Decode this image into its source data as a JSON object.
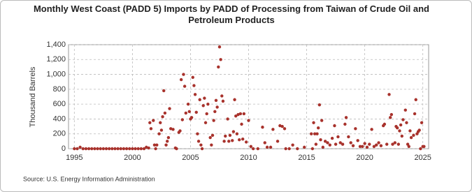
{
  "chart_data": {
    "type": "scatter",
    "title": "Monthly West Coast (PADD 5) Imports by PADD of Processing from Taiwan of Crude Oil and Petroleum Products",
    "y_label": "Thousand Barrels",
    "source": "Source: U.S. Energy Information Administration",
    "color": "#a8322c",
    "grid": true,
    "xlim": [
      1994.5,
      2025.5
    ],
    "xticks": [
      1995,
      2000,
      2005,
      2010,
      2015,
      2020,
      2025
    ],
    "ylim": [
      0,
      1400
    ],
    "yticks": [
      0,
      200,
      400,
      600,
      800,
      {
        "value": 1000,
        "label": "1,000"
      },
      {
        "value": 1200,
        "label": "1,200"
      },
      {
        "value": 1400,
        "label": "1,400"
      }
    ],
    "x": [
      1995.0,
      1995.25,
      1995.5,
      1995.75,
      1996.0,
      1996.25,
      1996.5,
      1996.75,
      1997.0,
      1997.25,
      1997.5,
      1997.75,
      1998.0,
      1998.25,
      1998.5,
      1998.75,
      1999.0,
      1999.25,
      1999.5,
      1999.75,
      2000.0,
      2000.25,
      2000.5,
      2000.75,
      2001.0,
      2001.2,
      2001.4,
      2001.5,
      2001.6,
      2001.8,
      2001.9,
      2002.0,
      2002.1,
      2002.3,
      2002.4,
      2002.5,
      2002.6,
      2002.7,
      2002.8,
      2002.9,
      2003.0,
      2003.1,
      2003.2,
      2003.3,
      2003.5,
      2003.7,
      2003.8,
      2004.0,
      2004.1,
      2004.2,
      2004.3,
      2004.4,
      2004.5,
      2004.6,
      2004.8,
      2004.9,
      2005.0,
      2005.1,
      2005.2,
      2005.3,
      2005.4,
      2005.5,
      2005.6,
      2005.7,
      2005.8,
      2005.9,
      2006.0,
      2006.1,
      2006.2,
      2006.3,
      2006.4,
      2006.5,
      2006.7,
      2006.8,
      2006.9,
      2007.0,
      2007.1,
      2007.2,
      2007.3,
      2007.4,
      2007.5,
      2007.6,
      2007.7,
      2007.8,
      2007.9,
      2008.0,
      2008.2,
      2008.3,
      2008.4,
      2008.6,
      2008.7,
      2008.8,
      2008.9,
      2009.0,
      2009.1,
      2009.2,
      2009.3,
      2009.4,
      2009.5,
      2009.6,
      2009.8,
      2010.0,
      2010.2,
      2010.4,
      2010.8,
      2011.2,
      2011.4,
      2011.6,
      2011.9,
      2012.1,
      2012.5,
      2012.7,
      2012.9,
      2013.1,
      2013.2,
      2013.5,
      2013.8,
      2014.2,
      2014.8,
      2015.4,
      2015.5,
      2015.6,
      2015.7,
      2015.8,
      2015.9,
      2016.0,
      2016.1,
      2016.2,
      2016.3,
      2016.4,
      2016.6,
      2016.8,
      2017.0,
      2017.2,
      2017.4,
      2017.5,
      2017.7,
      2017.9,
      2018.1,
      2018.3,
      2018.4,
      2018.6,
      2018.8,
      2019.0,
      2019.2,
      2019.4,
      2019.6,
      2019.8,
      2020.0,
      2020.2,
      2020.4,
      2020.6,
      2020.8,
      2021.0,
      2021.2,
      2021.4,
      2021.6,
      2021.7,
      2021.9,
      2022.1,
      2022.2,
      2022.3,
      2022.4,
      2022.6,
      2022.7,
      2022.8,
      2022.9,
      2023.0,
      2023.1,
      2023.2,
      2023.3,
      2023.5,
      2023.6,
      2023.7,
      2023.8,
      2023.9,
      2024.0,
      2024.2,
      2024.3,
      2024.4,
      2024.5,
      2024.6,
      2024.7,
      2024.8,
      2024.9,
      2025.0,
      2025.1
    ],
    "values": [
      0,
      0,
      20,
      0,
      0,
      0,
      0,
      0,
      0,
      0,
      0,
      0,
      0,
      0,
      0,
      0,
      0,
      0,
      0,
      0,
      0,
      0,
      0,
      0,
      0,
      20,
      10,
      350,
      270,
      380,
      50,
      0,
      50,
      200,
      350,
      250,
      430,
      780,
      480,
      50,
      100,
      150,
      540,
      270,
      260,
      10,
      0,
      220,
      240,
      930,
      390,
      1000,
      840,
      480,
      600,
      500,
      400,
      420,
      960,
      850,
      730,
      490,
      200,
      100,
      660,
      50,
      0,
      580,
      680,
      350,
      470,
      600,
      150,
      50,
      180,
      380,
      500,
      650,
      560,
      1100,
      1370,
      1200,
      710,
      640,
      100,
      170,
      400,
      100,
      180,
      110,
      230,
      660,
      440,
      200,
      460,
      120,
      470,
      330,
      130,
      470,
      90,
      380,
      30,
      0,
      0,
      290,
      80,
      20,
      20,
      260,
      100,
      310,
      300,
      270,
      0,
      0,
      50,
      0,
      20,
      200,
      0,
      350,
      200,
      60,
      200,
      280,
      590,
      120,
      380,
      20,
      100,
      80,
      50,
      140,
      310,
      60,
      160,
      80,
      60,
      330,
      420,
      160,
      80,
      40,
      270,
      110,
      30,
      30,
      70,
      20,
      60,
      260,
      30,
      50,
      80,
      40,
      310,
      330,
      60,
      730,
      420,
      460,
      60,
      80,
      300,
      280,
      60,
      240,
      320,
      170,
      390,
      520,
      350,
      60,
      30,
      240,
      150,
      180,
      470,
      660,
      200,
      230,
      250,
      0,
      350,
      30,
      30
    ]
  }
}
